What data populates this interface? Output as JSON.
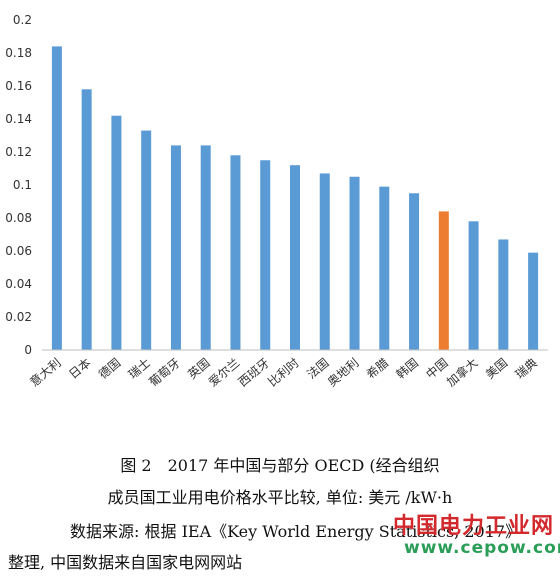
{
  "chart_data": {
    "type": "bar",
    "categories": [
      "意大利",
      "日本",
      "德国",
      "瑞士",
      "葡萄牙",
      "英国",
      "爱尔兰",
      "西班牙",
      "比利时",
      "法国",
      "奥地利",
      "希腊",
      "韩国",
      "中国",
      "加拿大",
      "美国",
      "瑞典"
    ],
    "values": [
      0.184,
      0.158,
      0.142,
      0.133,
      0.124,
      0.124,
      0.118,
      0.115,
      0.112,
      0.107,
      0.105,
      0.099,
      0.095,
      0.084,
      0.078,
      0.067,
      0.059
    ],
    "highlight_index": 13,
    "colors": {
      "bar": "#5b9bd5",
      "highlight": "#ed7d31",
      "axis": "#bfbfbf"
    },
    "ylim": [
      0,
      0.2
    ],
    "yticks": [
      "0",
      "0.02",
      "0.04",
      "0.06",
      "0.08",
      "0.1",
      "0.12",
      "0.14",
      "0.16",
      "0.18",
      "0.2"
    ],
    "grid": false,
    "title": "",
    "xlabel": "",
    "ylabel": ""
  },
  "caption": {
    "line1": "图 2　2017 年中国与部分 OECD (经合组织",
    "line2": "成员国工业用电价格水平比较, 单位: 美元 /kW·h",
    "line3": "数据来源: 根据 IEA《Key World Energy Statistics, 2017》",
    "line4": "整理, 中国数据来自国家电网网站"
  },
  "watermark": {
    "name": "中国电力工业网",
    "url": "www.cepow.com"
  }
}
